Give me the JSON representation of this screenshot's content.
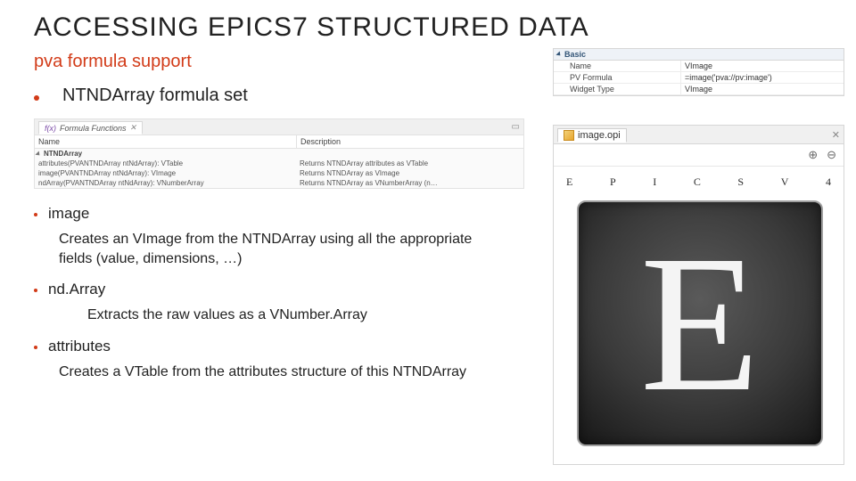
{
  "title": "ACCESSING EPICS7 STRUCTURED DATA",
  "subtitle": "pva formula support",
  "colors": {
    "accent": "#d23b18",
    "text": "#222222",
    "panel_border": "#d6d6d6",
    "panel_header_bg": "#eef2f7",
    "panel_header_text": "#335577"
  },
  "main_bullet": "NTNDArray formula set",
  "formula_functions": {
    "tab_label": "Formula Functions",
    "columns": [
      "Name",
      "Description"
    ],
    "group": "NTNDArray",
    "rows": [
      {
        "name": "attributes(PVANTNDArray ntNdArray): VTable",
        "desc": "Returns NTNDArray attributes as VTable"
      },
      {
        "name": "image(PVANTNDArray ntNdArray): VImage",
        "desc": "Returns NTNDArray as VImage"
      },
      {
        "name": "ndArray(PVANTNDArray ntNdArray): VNumberArray",
        "desc": "Returns NTNDArray as VNumberArray (n…"
      }
    ]
  },
  "items": [
    {
      "name": "image",
      "desc": "Creates an VImage from the NTNDArray using all the appropriate fields (value, dimensions, …)",
      "indent": 1
    },
    {
      "name": "nd.Array",
      "desc": "Extracts the raw values as a VNumber.Array",
      "indent": 2
    },
    {
      "name": "attributes",
      "desc": "Creates a VTable from the attributes structure of this NTNDArray",
      "indent": 1
    }
  ],
  "prop_panel": {
    "section": "Basic",
    "rows": [
      {
        "k": "Name",
        "v": "VImage"
      },
      {
        "k": "PV Formula",
        "v": "=image('pva://pv:image')"
      },
      {
        "k": "Widget Type",
        "v": "VImage"
      }
    ]
  },
  "opi": {
    "tab_label": "image.opi",
    "zoom_in": "⊕",
    "zoom_out": "⊖",
    "letters": [
      "E",
      "P",
      "I",
      "C",
      "S",
      "V",
      "4"
    ],
    "big_letter": "E"
  }
}
